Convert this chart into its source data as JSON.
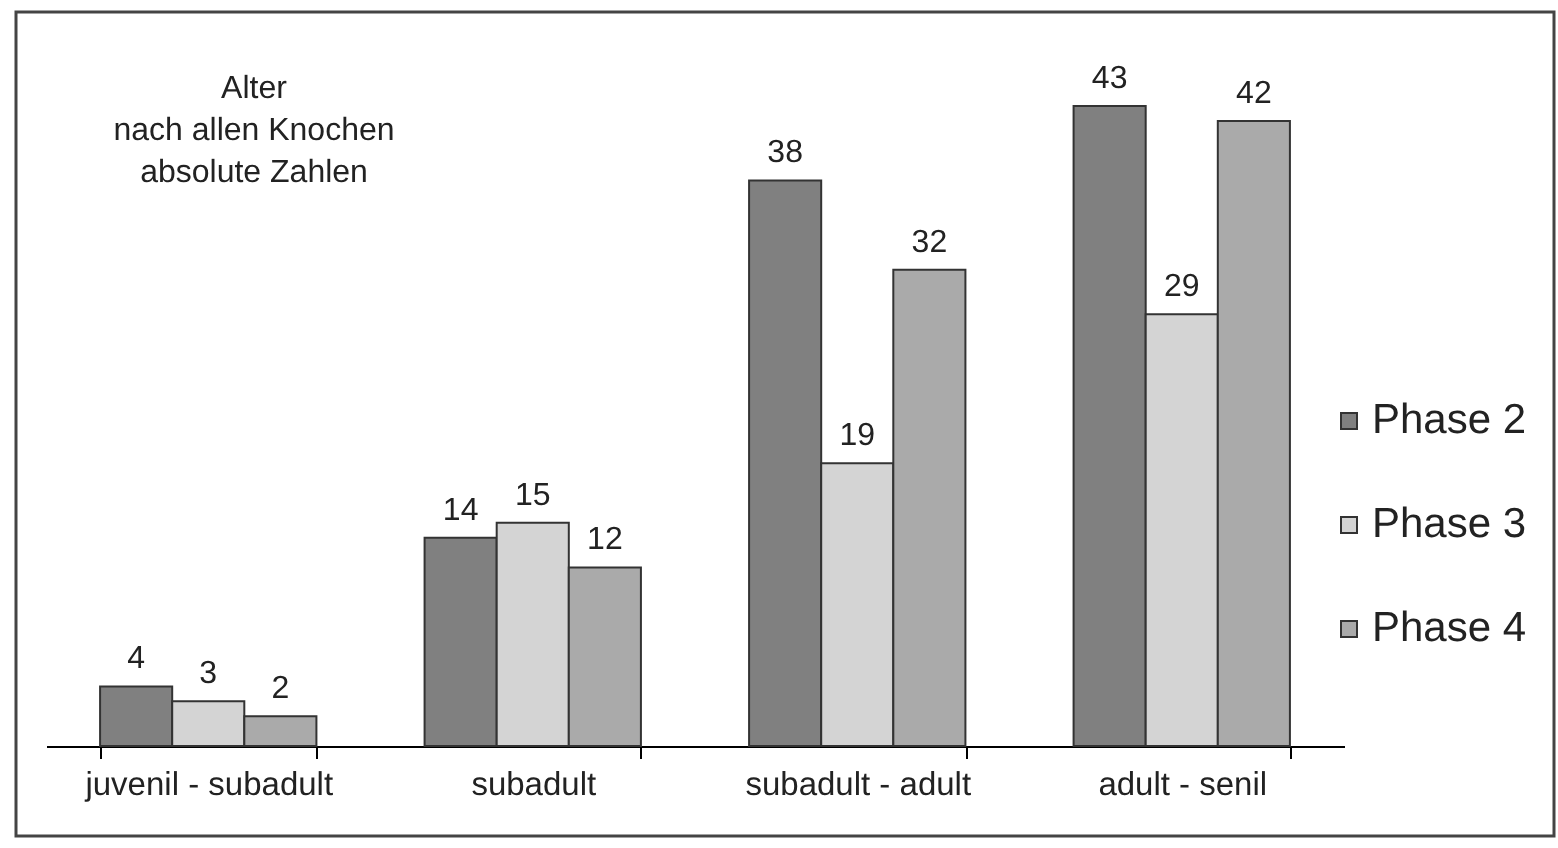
{
  "chart_data": {
    "type": "bar",
    "title": "Alter\nnach allen Knochen\nabsolute Zahlen",
    "categories": [
      "juvenil - subadult",
      "subadult",
      "subadult - adult",
      "adult - senil"
    ],
    "series": [
      {
        "name": "Phase 2",
        "color": "#808080",
        "values": [
          4,
          14,
          38,
          43
        ]
      },
      {
        "name": "Phase 3",
        "color": "#d4d4d4",
        "values": [
          3,
          15,
          19,
          29
        ]
      },
      {
        "name": "Phase 4",
        "color": "#aaaaaa",
        "values": [
          2,
          12,
          32,
          42
        ]
      }
    ],
    "data_labels": true,
    "legend": "right",
    "tick_labels": "x"
  }
}
